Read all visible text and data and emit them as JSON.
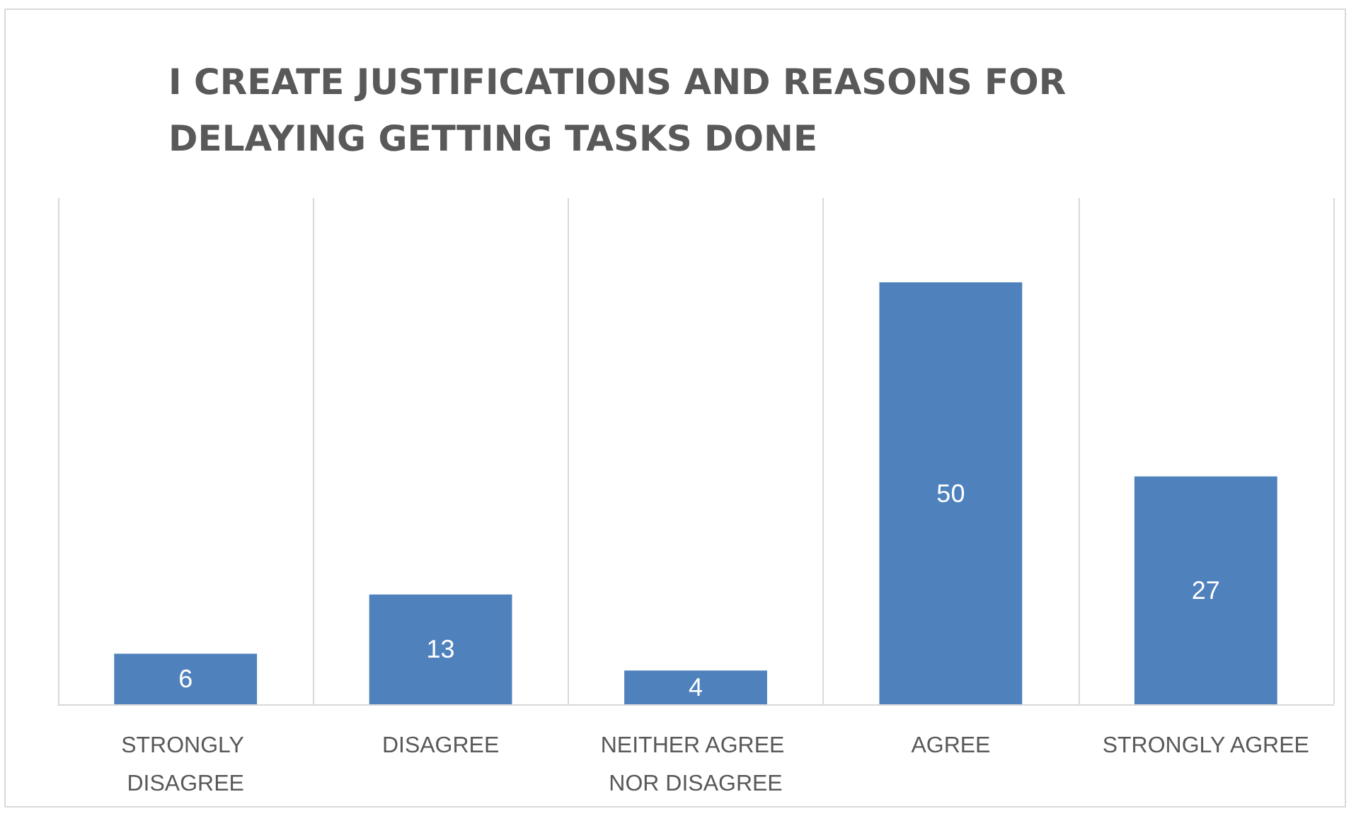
{
  "chart_data": {
    "type": "bar",
    "title": "I CREATE JUSTIFICATIONS AND REASONS FOR DELAYING GETTING TASKS DONE",
    "categories": [
      "STRONGLY DISAGREE",
      "DISAGREE",
      "NEITHER AGREE NOR DISAGREE",
      "AGREE",
      "STRONGLY AGREE"
    ],
    "values": [
      6,
      13,
      4,
      50,
      27
    ],
    "color": "#4f81bd",
    "ylim": [
      0,
      60
    ],
    "data_labels": true,
    "grid": "x",
    "tick_labels": "x"
  }
}
